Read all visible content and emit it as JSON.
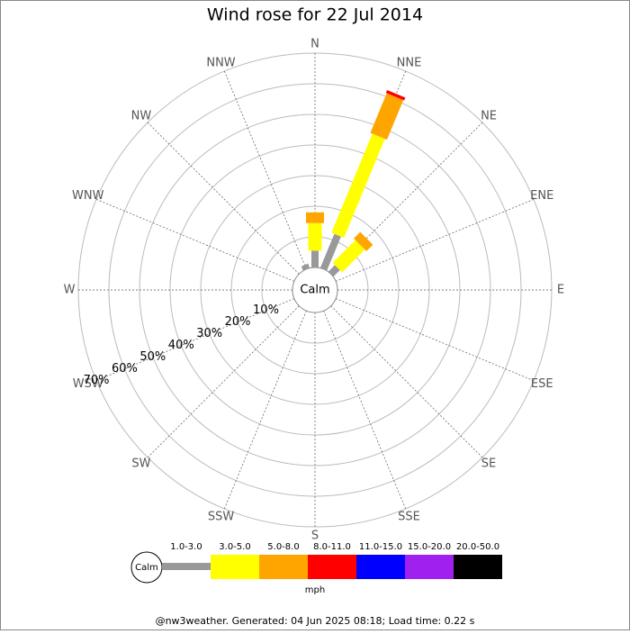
{
  "chart_data": {
    "type": "windrose",
    "title": "Wind rose for 22 Jul 2014",
    "directions": [
      "N",
      "NNE",
      "NE",
      "ENE",
      "E",
      "ESE",
      "SE",
      "SSE",
      "S",
      "SSW",
      "SW",
      "WSW",
      "W",
      "WNW",
      "NW",
      "NNW"
    ],
    "series": [
      {
        "name": "1.0-3.0",
        "color": "#999999",
        "values": [
          5.5,
          12,
          3,
          0,
          0,
          0,
          0,
          0,
          0,
          0,
          0,
          0,
          0,
          0,
          0,
          1.5
        ]
      },
      {
        "name": "3.0-5.0",
        "color": "#ffff00",
        "values": [
          9,
          35,
          10.5,
          0,
          0,
          0,
          0,
          0,
          0,
          0,
          0,
          0,
          0,
          0,
          0,
          0
        ]
      },
      {
        "name": "5.0-8.0",
        "color": "#ffa500",
        "values": [
          3.5,
          14,
          3,
          0,
          0,
          0,
          0,
          0,
          0,
          0,
          0,
          0,
          0,
          0,
          0,
          0
        ]
      },
      {
        "name": "8.0-11.0",
        "color": "#ff0000",
        "values": [
          0,
          1,
          0,
          0,
          0,
          0,
          0,
          0,
          0,
          0,
          0,
          0,
          0,
          0,
          0,
          0
        ]
      },
      {
        "name": "11.0-15.0",
        "color": "#0000ff",
        "values": [
          0,
          0,
          0,
          0,
          0,
          0,
          0,
          0,
          0,
          0,
          0,
          0,
          0,
          0,
          0,
          0
        ]
      },
      {
        "name": "15.0-20.0",
        "color": "#a020f0",
        "values": [
          0,
          0,
          0,
          0,
          0,
          0,
          0,
          0,
          0,
          0,
          0,
          0,
          0,
          0,
          0,
          0
        ]
      },
      {
        "name": "20.0-50.0",
        "color": "#000000",
        "values": [
          0,
          0,
          0,
          0,
          0,
          0,
          0,
          0,
          0,
          0,
          0,
          0,
          0,
          0,
          0,
          0
        ]
      }
    ],
    "rlim": [
      0,
      70
    ],
    "rticks": [
      {
        "value": 10,
        "label": "10%"
      },
      {
        "value": 20,
        "label": "20%"
      },
      {
        "value": 30,
        "label": "30%"
      },
      {
        "value": 40,
        "label": "40%"
      },
      {
        "value": 50,
        "label": "50%"
      },
      {
        "value": 60,
        "label": "60%"
      },
      {
        "value": 70,
        "label": "70%"
      }
    ],
    "calm_label": "Calm",
    "unit": "mph",
    "footer": "@nw3weather. Generated: 04 Jun 2025 08:18; Load time: 0.22 s"
  }
}
